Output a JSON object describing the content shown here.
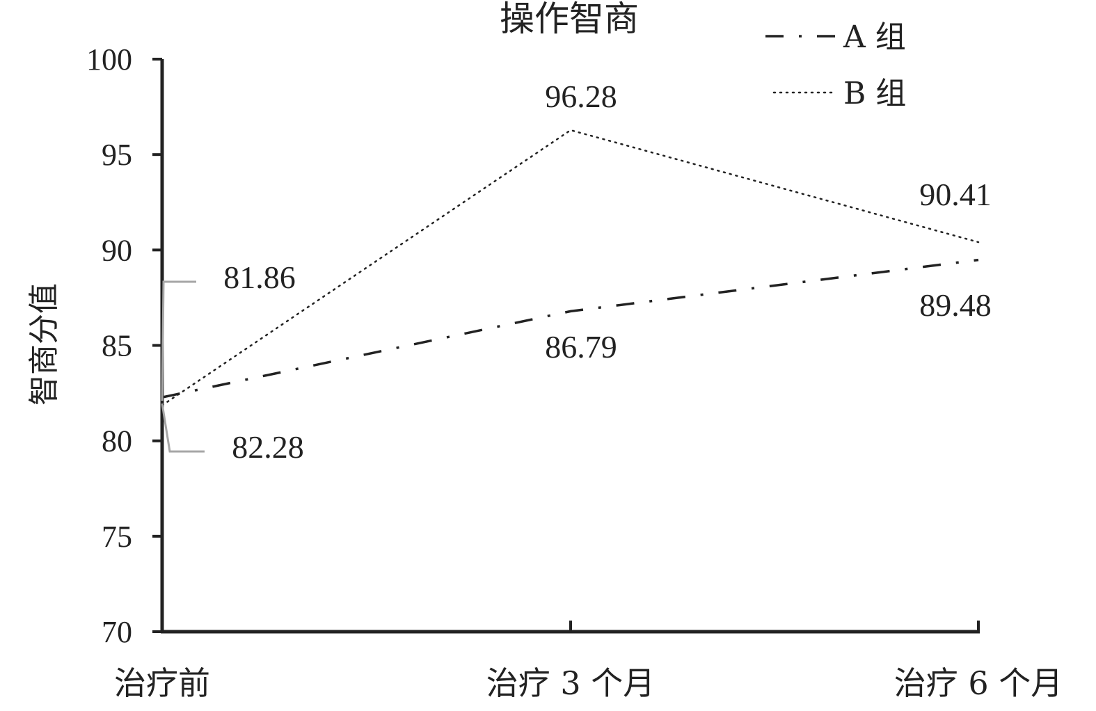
{
  "chart_data": {
    "type": "line",
    "title": "操作智商",
    "ylabel": "智商分值",
    "xlabel": "",
    "categories": [
      "治疗前",
      "治疗 3 个月",
      "治疗 6 个月"
    ],
    "ylim": [
      70,
      100
    ],
    "yticks": [
      70,
      75,
      80,
      85,
      90,
      95,
      100
    ],
    "legend_position": "top-right",
    "series": [
      {
        "name": "A 组",
        "values": [
          82.28,
          86.79,
          89.48
        ],
        "labels": [
          "82.28",
          "86.79",
          "89.48"
        ],
        "style": "dash-dot"
      },
      {
        "name": "B 组",
        "values": [
          81.86,
          96.28,
          90.41
        ],
        "labels": [
          "81.86",
          "96.28",
          "90.41"
        ],
        "style": "dotted"
      }
    ],
    "colors": {
      "axis": "#222222",
      "series": "#222222",
      "leader": "#a6a6a6"
    }
  }
}
